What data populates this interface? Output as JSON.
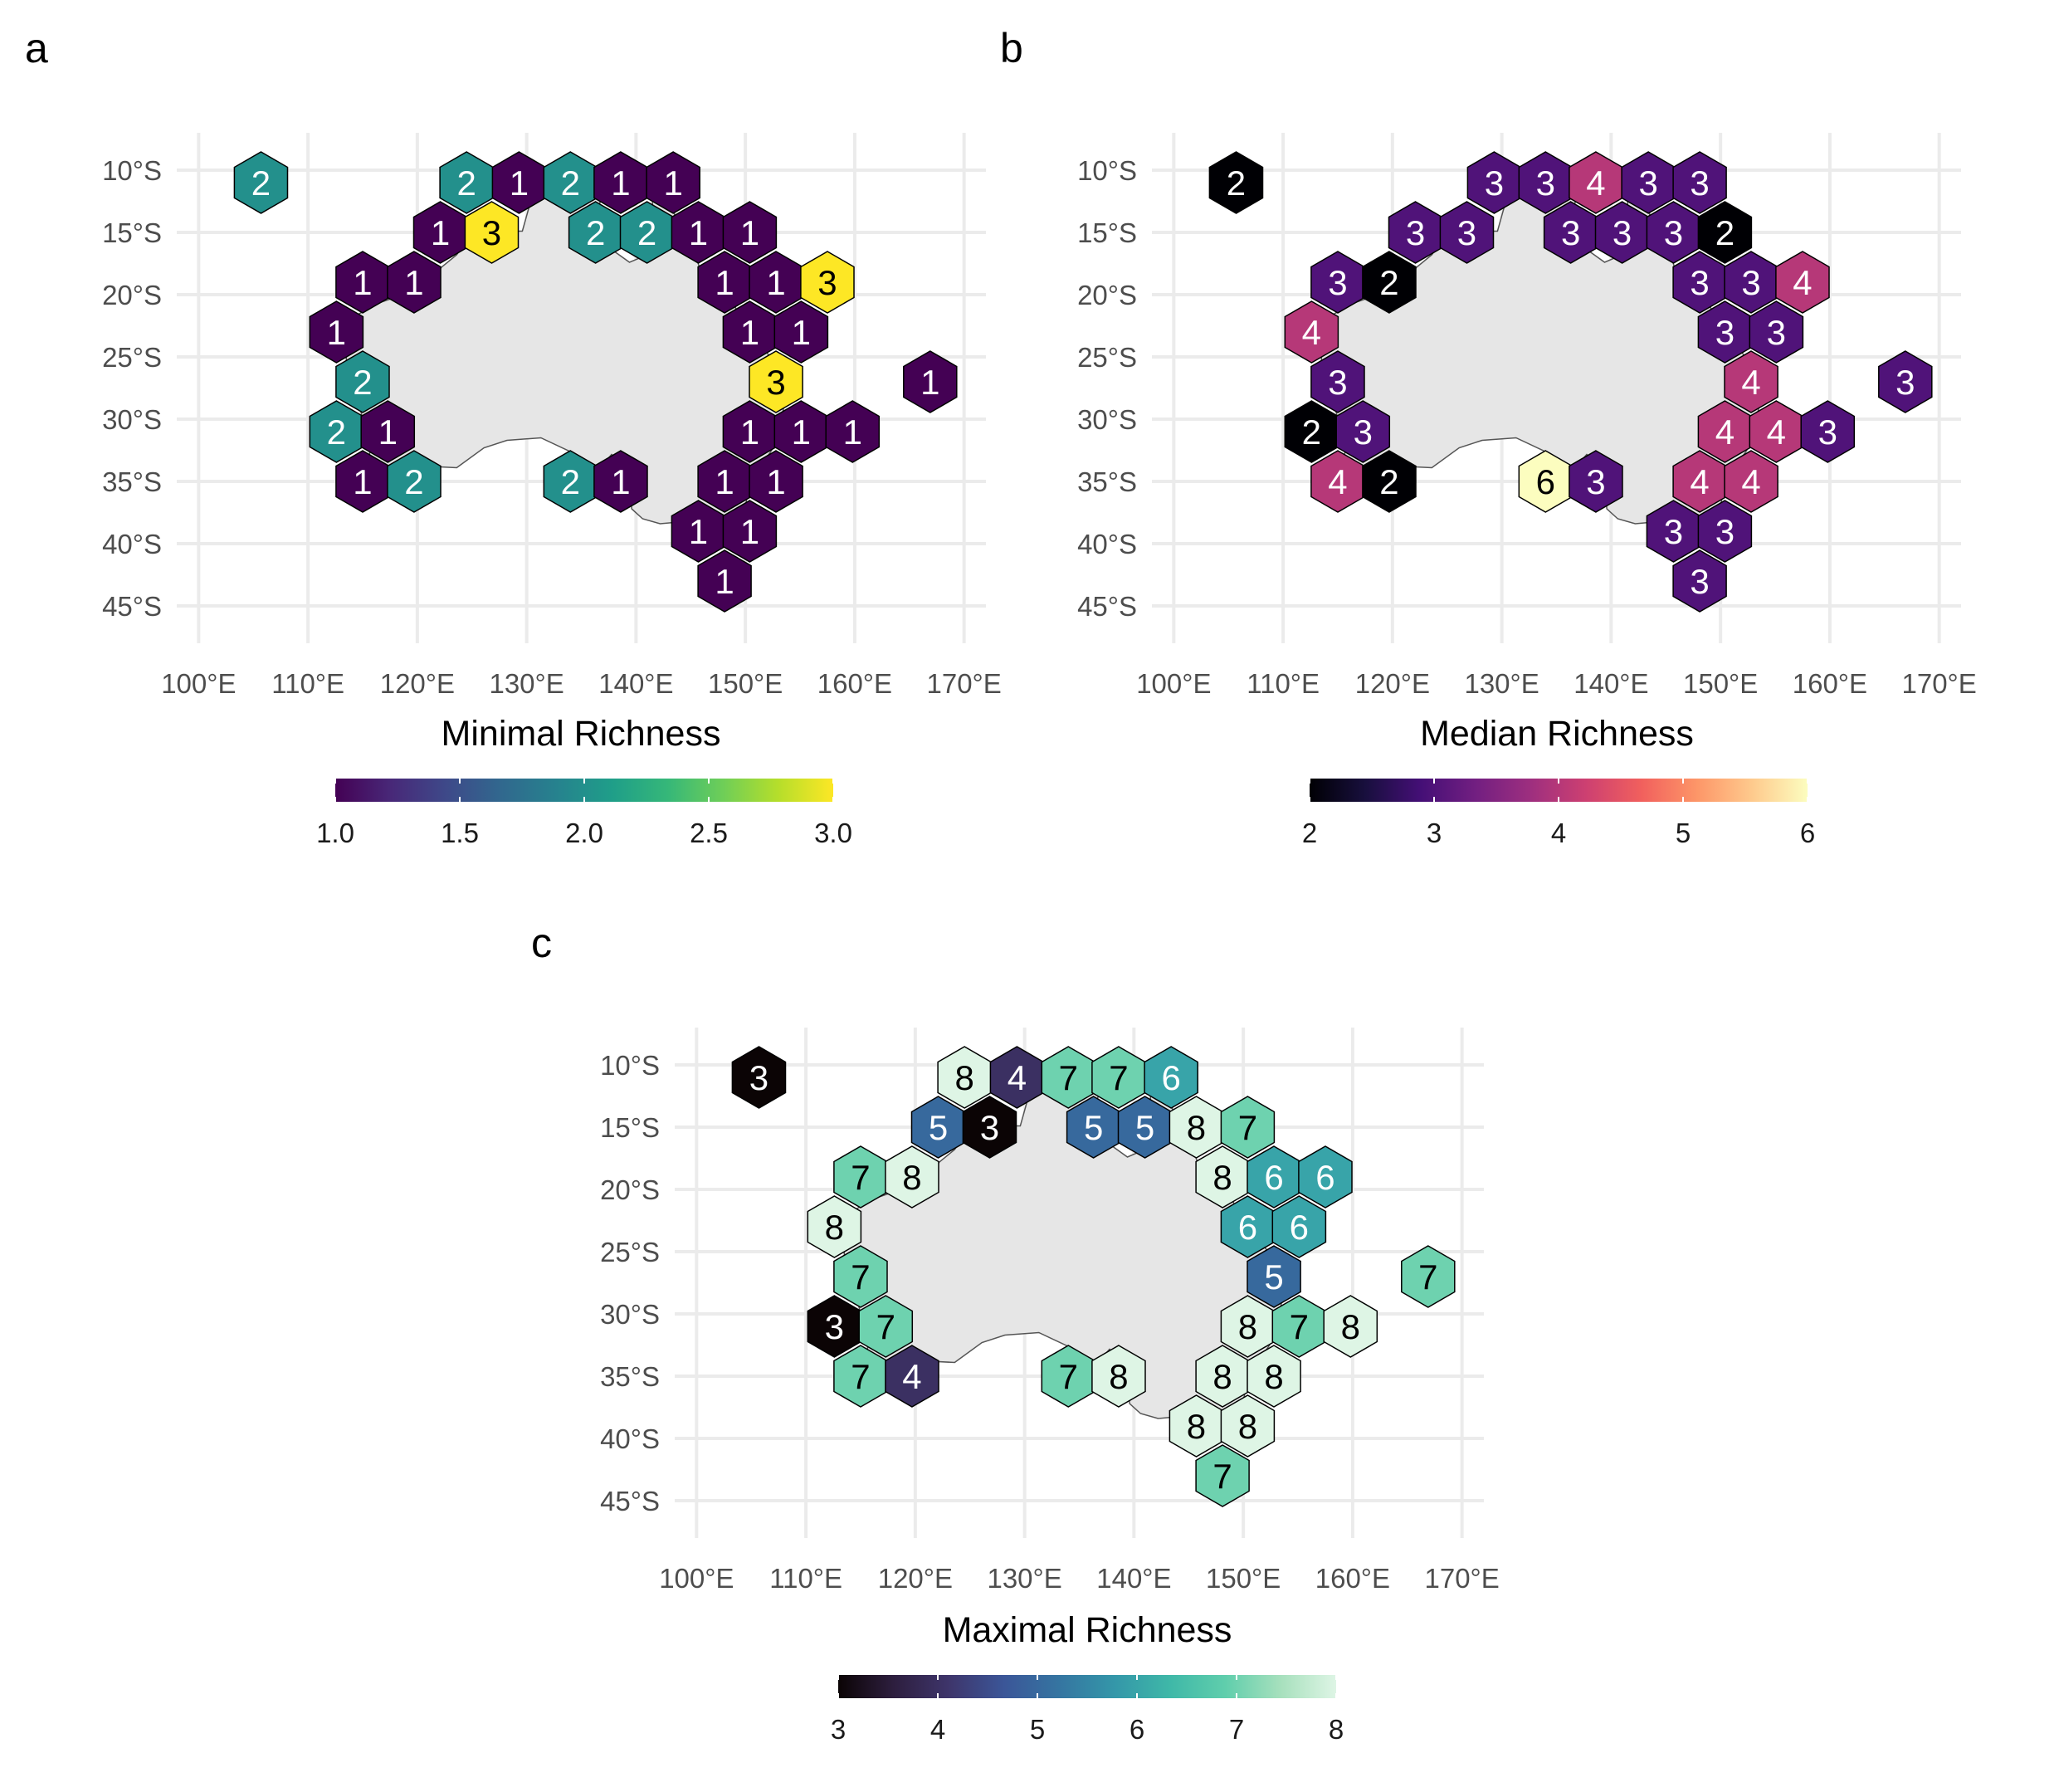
{
  "chart_data": [
    {
      "type": "heatmap",
      "panel_label": "a",
      "legend_title": "Minimal Richness",
      "x_ticks": [
        "100°E",
        "110°E",
        "120°E",
        "130°E",
        "140°E",
        "150°E",
        "160°E",
        "170°E"
      ],
      "y_ticks": [
        "10°S",
        "15°S",
        "20°S",
        "25°S",
        "30°S",
        "35°S",
        "40°S",
        "45°S"
      ],
      "xlim": [
        98,
        172
      ],
      "ylim": [
        -48,
        -7
      ],
      "colorscale": "viridis",
      "value_range": [
        1,
        3
      ],
      "legend_ticks": [
        "1.0",
        "1.5",
        "2.0",
        "2.5",
        "3.0"
      ],
      "legend_tick_values": [
        1.0,
        1.5,
        2.0,
        2.5,
        3.0
      ],
      "cells": [
        {
          "lon": 105.7,
          "lat": -11.0,
          "value": 2
        },
        {
          "lon": 124.5,
          "lat": -11.0,
          "value": 2
        },
        {
          "lon": 129.3,
          "lat": -11.0,
          "value": 1
        },
        {
          "lon": 134.0,
          "lat": -11.0,
          "value": 2
        },
        {
          "lon": 138.6,
          "lat": -11.0,
          "value": 1
        },
        {
          "lon": 143.4,
          "lat": -11.0,
          "value": 1
        },
        {
          "lon": 122.1,
          "lat": -15.0,
          "value": 1
        },
        {
          "lon": 126.8,
          "lat": -15.0,
          "value": 3
        },
        {
          "lon": 136.3,
          "lat": -15.0,
          "value": 2
        },
        {
          "lon": 141.0,
          "lat": -15.0,
          "value": 2
        },
        {
          "lon": 145.7,
          "lat": -15.0,
          "value": 1
        },
        {
          "lon": 150.4,
          "lat": -15.0,
          "value": 1
        },
        {
          "lon": 115.0,
          "lat": -19.0,
          "value": 1
        },
        {
          "lon": 119.7,
          "lat": -19.0,
          "value": 1
        },
        {
          "lon": 148.1,
          "lat": -19.0,
          "value": 1
        },
        {
          "lon": 152.8,
          "lat": -19.0,
          "value": 1
        },
        {
          "lon": 157.5,
          "lat": -19.0,
          "value": 3
        },
        {
          "lon": 112.6,
          "lat": -23.0,
          "value": 1
        },
        {
          "lon": 150.4,
          "lat": -23.0,
          "value": 1
        },
        {
          "lon": 155.1,
          "lat": -23.0,
          "value": 1
        },
        {
          "lon": 115.0,
          "lat": -27.0,
          "value": 2
        },
        {
          "lon": 152.8,
          "lat": -27.0,
          "value": 3
        },
        {
          "lon": 166.9,
          "lat": -27.0,
          "value": 1
        },
        {
          "lon": 112.6,
          "lat": -31.0,
          "value": 2
        },
        {
          "lon": 117.3,
          "lat": -31.0,
          "value": 1
        },
        {
          "lon": 150.4,
          "lat": -31.0,
          "value": 1
        },
        {
          "lon": 155.1,
          "lat": -31.0,
          "value": 1
        },
        {
          "lon": 159.8,
          "lat": -31.0,
          "value": 1
        },
        {
          "lon": 115.0,
          "lat": -35.0,
          "value": 1
        },
        {
          "lon": 119.7,
          "lat": -35.0,
          "value": 2
        },
        {
          "lon": 134.0,
          "lat": -35.0,
          "value": 2
        },
        {
          "lon": 138.6,
          "lat": -35.0,
          "value": 1
        },
        {
          "lon": 148.1,
          "lat": -35.0,
          "value": 1
        },
        {
          "lon": 152.8,
          "lat": -35.0,
          "value": 1
        },
        {
          "lon": 145.7,
          "lat": -39.0,
          "value": 1
        },
        {
          "lon": 150.4,
          "lat": -39.0,
          "value": 1
        },
        {
          "lon": 148.1,
          "lat": -43.0,
          "value": 1
        }
      ]
    },
    {
      "type": "heatmap",
      "panel_label": "b",
      "legend_title": "Median Richness",
      "x_ticks": [
        "100°E",
        "110°E",
        "120°E",
        "130°E",
        "140°E",
        "150°E",
        "160°E",
        "170°E"
      ],
      "y_ticks": [
        "10°S",
        "15°S",
        "20°S",
        "25°S",
        "30°S",
        "35°S",
        "40°S",
        "45°S"
      ],
      "xlim": [
        98,
        172
      ],
      "ylim": [
        -48,
        -7
      ],
      "colorscale": "magma",
      "value_range": [
        2,
        6
      ],
      "legend_ticks": [
        "2",
        "3",
        "4",
        "5",
        "6"
      ],
      "legend_tick_values": [
        2,
        3,
        4,
        5,
        6
      ],
      "cells": [
        {
          "lon": 105.7,
          "lat": -11.0,
          "value": 2
        },
        {
          "lon": 129.3,
          "lat": -11.0,
          "value": 3
        },
        {
          "lon": 134.0,
          "lat": -11.0,
          "value": 3
        },
        {
          "lon": 138.6,
          "lat": -11.0,
          "value": 4
        },
        {
          "lon": 143.4,
          "lat": -11.0,
          "value": 3
        },
        {
          "lon": 148.1,
          "lat": -11.0,
          "value": 3
        },
        {
          "lon": 122.1,
          "lat": -15.0,
          "value": 3
        },
        {
          "lon": 126.8,
          "lat": -15.0,
          "value": 3
        },
        {
          "lon": 136.3,
          "lat": -15.0,
          "value": 3
        },
        {
          "lon": 141.0,
          "lat": -15.0,
          "value": 3
        },
        {
          "lon": 145.7,
          "lat": -15.0,
          "value": 3
        },
        {
          "lon": 150.4,
          "lat": -15.0,
          "value": 2
        },
        {
          "lon": 115.0,
          "lat": -19.0,
          "value": 3
        },
        {
          "lon": 119.7,
          "lat": -19.0,
          "value": 2
        },
        {
          "lon": 148.1,
          "lat": -19.0,
          "value": 3
        },
        {
          "lon": 152.8,
          "lat": -19.0,
          "value": 3
        },
        {
          "lon": 157.5,
          "lat": -19.0,
          "value": 4
        },
        {
          "lon": 112.6,
          "lat": -23.0,
          "value": 4
        },
        {
          "lon": 150.4,
          "lat": -23.0,
          "value": 3
        },
        {
          "lon": 155.1,
          "lat": -23.0,
          "value": 3
        },
        {
          "lon": 115.0,
          "lat": -27.0,
          "value": 3
        },
        {
          "lon": 152.8,
          "lat": -27.0,
          "value": 4
        },
        {
          "lon": 166.9,
          "lat": -27.0,
          "value": 3
        },
        {
          "lon": 112.6,
          "lat": -31.0,
          "value": 2
        },
        {
          "lon": 117.3,
          "lat": -31.0,
          "value": 3
        },
        {
          "lon": 150.4,
          "lat": -31.0,
          "value": 4
        },
        {
          "lon": 155.1,
          "lat": -31.0,
          "value": 4
        },
        {
          "lon": 159.8,
          "lat": -31.0,
          "value": 3
        },
        {
          "lon": 115.0,
          "lat": -35.0,
          "value": 4
        },
        {
          "lon": 119.7,
          "lat": -35.0,
          "value": 2
        },
        {
          "lon": 134.0,
          "lat": -35.0,
          "value": 6
        },
        {
          "lon": 138.6,
          "lat": -35.0,
          "value": 3
        },
        {
          "lon": 148.1,
          "lat": -35.0,
          "value": 4
        },
        {
          "lon": 152.8,
          "lat": -35.0,
          "value": 4
        },
        {
          "lon": 145.7,
          "lat": -39.0,
          "value": 3
        },
        {
          "lon": 150.4,
          "lat": -39.0,
          "value": 3
        },
        {
          "lon": 148.1,
          "lat": -43.0,
          "value": 3
        }
      ]
    },
    {
      "type": "heatmap",
      "panel_label": "c",
      "legend_title": "Maximal Richness",
      "x_ticks": [
        "100°E",
        "110°E",
        "120°E",
        "130°E",
        "140°E",
        "150°E",
        "160°E",
        "170°E"
      ],
      "y_ticks": [
        "10°S",
        "15°S",
        "20°S",
        "25°S",
        "30°S",
        "35°S",
        "40°S",
        "45°S"
      ],
      "xlim": [
        98,
        172
      ],
      "ylim": [
        -48,
        -7
      ],
      "colorscale": "mako",
      "value_range": [
        3,
        8
      ],
      "legend_ticks": [
        "3",
        "4",
        "5",
        "6",
        "7",
        "8"
      ],
      "legend_tick_values": [
        3,
        4,
        5,
        6,
        7,
        8
      ],
      "cells": [
        {
          "lon": 105.7,
          "lat": -11.0,
          "value": 3
        },
        {
          "lon": 124.5,
          "lat": -11.0,
          "value": 8
        },
        {
          "lon": 129.3,
          "lat": -11.0,
          "value": 4
        },
        {
          "lon": 134.0,
          "lat": -11.0,
          "value": 7
        },
        {
          "lon": 138.6,
          "lat": -11.0,
          "value": 7
        },
        {
          "lon": 143.4,
          "lat": -11.0,
          "value": 6
        },
        {
          "lon": 122.1,
          "lat": -15.0,
          "value": 5
        },
        {
          "lon": 126.8,
          "lat": -15.0,
          "value": 3
        },
        {
          "lon": 136.3,
          "lat": -15.0,
          "value": 5
        },
        {
          "lon": 141.0,
          "lat": -15.0,
          "value": 5
        },
        {
          "lon": 145.7,
          "lat": -15.0,
          "value": 8
        },
        {
          "lon": 150.4,
          "lat": -15.0,
          "value": 7
        },
        {
          "lon": 115.0,
          "lat": -19.0,
          "value": 7
        },
        {
          "lon": 119.7,
          "lat": -19.0,
          "value": 8
        },
        {
          "lon": 148.1,
          "lat": -19.0,
          "value": 8
        },
        {
          "lon": 152.8,
          "lat": -19.0,
          "value": 6
        },
        {
          "lon": 157.5,
          "lat": -19.0,
          "value": 6
        },
        {
          "lon": 112.6,
          "lat": -23.0,
          "value": 8
        },
        {
          "lon": 150.4,
          "lat": -23.0,
          "value": 6
        },
        {
          "lon": 155.1,
          "lat": -23.0,
          "value": 6
        },
        {
          "lon": 115.0,
          "lat": -27.0,
          "value": 7
        },
        {
          "lon": 152.8,
          "lat": -27.0,
          "value": 5
        },
        {
          "lon": 166.9,
          "lat": -27.0,
          "value": 7
        },
        {
          "lon": 112.6,
          "lat": -31.0,
          "value": 3
        },
        {
          "lon": 117.3,
          "lat": -31.0,
          "value": 7
        },
        {
          "lon": 150.4,
          "lat": -31.0,
          "value": 8
        },
        {
          "lon": 155.1,
          "lat": -31.0,
          "value": 7
        },
        {
          "lon": 159.8,
          "lat": -31.0,
          "value": 8
        },
        {
          "lon": 115.0,
          "lat": -35.0,
          "value": 7
        },
        {
          "lon": 119.7,
          "lat": -35.0,
          "value": 4
        },
        {
          "lon": 134.0,
          "lat": -35.0,
          "value": 7
        },
        {
          "lon": 138.6,
          "lat": -35.0,
          "value": 8
        },
        {
          "lon": 148.1,
          "lat": -35.0,
          "value": 8
        },
        {
          "lon": 152.8,
          "lat": -35.0,
          "value": 8
        },
        {
          "lon": 145.7,
          "lat": -39.0,
          "value": 8
        },
        {
          "lon": 150.4,
          "lat": -39.0,
          "value": 8
        },
        {
          "lon": 148.1,
          "lat": -43.0,
          "value": 7
        }
      ]
    }
  ],
  "colors": {
    "grid": "#ebebeb",
    "land": "#e6e6e6",
    "coastline": "#555555",
    "hex_border": "#000000",
    "background": "#ffffff"
  }
}
